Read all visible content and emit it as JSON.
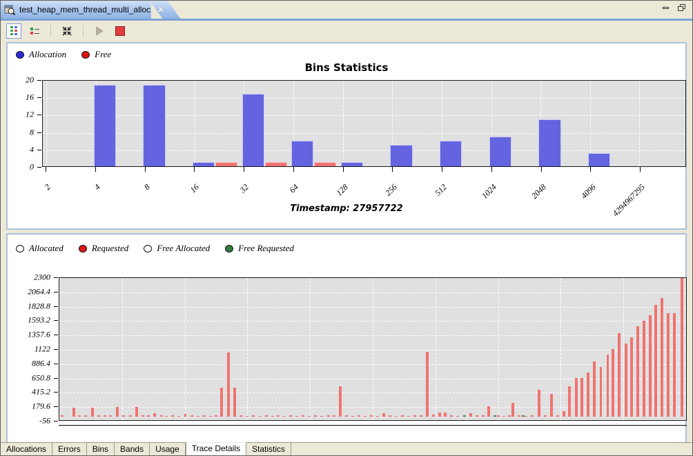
{
  "window": {
    "tab_title": "test_heap_mem_thread_multi_alloc",
    "close_glyph": "✕"
  },
  "toolbar": {
    "icons": [
      "grid-view",
      "legend-view",
      "fit-to-window",
      "play",
      "stop"
    ]
  },
  "legend_top": [
    {
      "label": "Allocation",
      "color": "#2a2ad8"
    },
    {
      "label": "Free",
      "color": "#e01414"
    }
  ],
  "legend_bottom": [
    {
      "label": "Allocated",
      "color": "#ffffff"
    },
    {
      "label": "Requested",
      "color": "#e01414"
    },
    {
      "label": "Free Allocated",
      "color": "#ffffff"
    },
    {
      "label": "Free Requested",
      "color": "#2e7d3c"
    }
  ],
  "bins": {
    "title": "Bins Statistics",
    "timestamp": "Timestamp: 27957722"
  },
  "bottom_tabs": {
    "items": [
      "Allocations",
      "Errors",
      "Bins",
      "Bands",
      "Usage",
      "Trace Details",
      "Statistics"
    ],
    "active": "Trace Details"
  },
  "chart_data": [
    {
      "type": "bar",
      "title": "Bins Statistics",
      "categories": [
        "2",
        "4",
        "8",
        "16",
        "32",
        "64",
        "128",
        "256",
        "512",
        "1024",
        "2048",
        "4096",
        "4294967295"
      ],
      "series": [
        {
          "name": "Allocation",
          "color": "#6463e0",
          "border": "#c9c9f5",
          "values": [
            0,
            19,
            19,
            1,
            17,
            6,
            1,
            5,
            6,
            7,
            11,
            3,
            0
          ]
        },
        {
          "name": "Free",
          "color": "#ef7370",
          "border": "#f7c3c0",
          "values": [
            0,
            0,
            0,
            1,
            1,
            1,
            0,
            0,
            0,
            0,
            0,
            0,
            0
          ]
        }
      ],
      "ylim": [
        0,
        20
      ],
      "yticks": [
        0,
        4,
        8,
        12,
        16,
        20
      ],
      "grid": true,
      "legend_position": "top-left",
      "annotation": "Timestamp: 27957722"
    },
    {
      "type": "bar",
      "title": "",
      "legend": [
        "Allocated",
        "Requested",
        "Free Allocated",
        "Free Requested"
      ],
      "ylim": [
        -56,
        2300
      ],
      "yticks": [
        2300,
        2064.4,
        1828.8,
        1593.2,
        1357.6,
        1122,
        886.4,
        650.8,
        415.2,
        179.6,
        -56
      ],
      "xdivisions": 10,
      "grid": true,
      "colors": {
        "requested": "#ef7370",
        "free_requested": "#3f8b4f"
      },
      "bars": [
        [
          0.4,
          25
        ],
        [
          2.3,
          150
        ],
        [
          3.2,
          20
        ],
        [
          4.2,
          25
        ],
        [
          5.3,
          150
        ],
        [
          6.3,
          20
        ],
        [
          7.3,
          25
        ],
        [
          8.1,
          20
        ],
        [
          9.2,
          160
        ],
        [
          10.2,
          25
        ],
        [
          11.3,
          20
        ],
        [
          12.3,
          165
        ],
        [
          13.3,
          25
        ],
        [
          14.2,
          20
        ],
        [
          15.2,
          60
        ],
        [
          16.3,
          25
        ],
        [
          17.1,
          15
        ],
        [
          18.1,
          20
        ],
        [
          19.1,
          15
        ],
        [
          20.1,
          50
        ],
        [
          21.1,
          20
        ],
        [
          22.1,
          15
        ],
        [
          23.1,
          20
        ],
        [
          24.1,
          15
        ],
        [
          25.0,
          20
        ],
        [
          25.9,
          480
        ],
        [
          27.0,
          1060
        ],
        [
          28.0,
          480
        ],
        [
          29.0,
          25
        ],
        [
          30.0,
          15
        ],
        [
          31.0,
          20
        ],
        [
          32.0,
          15
        ],
        [
          33.0,
          20
        ],
        [
          34.0,
          15
        ],
        [
          34.9,
          20
        ],
        [
          35.9,
          15
        ],
        [
          36.9,
          20
        ],
        [
          37.9,
          15
        ],
        [
          38.9,
          20
        ],
        [
          39.9,
          15
        ],
        [
          40.9,
          20
        ],
        [
          41.9,
          15
        ],
        [
          42.9,
          20
        ],
        [
          43.8,
          25
        ],
        [
          44.8,
          500
        ],
        [
          45.8,
          20
        ],
        [
          46.8,
          15
        ],
        [
          47.8,
          20
        ],
        [
          48.8,
          15
        ],
        [
          49.8,
          20
        ],
        [
          50.8,
          15
        ],
        [
          51.8,
          60
        ],
        [
          52.7,
          20
        ],
        [
          53.7,
          15
        ],
        [
          54.7,
          20
        ],
        [
          55.7,
          15
        ],
        [
          56.7,
          25
        ],
        [
          57.7,
          30
        ],
        [
          58.7,
          1080
        ],
        [
          59.7,
          35
        ],
        [
          60.7,
          70
        ],
        [
          61.6,
          70
        ],
        [
          62.6,
          25
        ],
        [
          63.6,
          15
        ],
        [
          64.6,
          25,
          1
        ],
        [
          65.6,
          55
        ],
        [
          66.6,
          20
        ],
        [
          67.6,
          20
        ],
        [
          68.5,
          170
        ],
        [
          69.5,
          30,
          1
        ],
        [
          70.0,
          25
        ],
        [
          70.9,
          15
        ],
        [
          71.8,
          20
        ],
        [
          72.4,
          230
        ],
        [
          73.4,
          20
        ],
        [
          74.0,
          30,
          1
        ],
        [
          74.5,
          15
        ],
        [
          75.4,
          20
        ],
        [
          76.5,
          450
        ],
        [
          77.5,
          20
        ],
        [
          78.5,
          380
        ],
        [
          79.5,
          20
        ],
        [
          80.5,
          90
        ],
        [
          81.4,
          500
        ],
        [
          82.5,
          640
        ],
        [
          83.4,
          640
        ],
        [
          84.4,
          730
        ],
        [
          85.3,
          920
        ],
        [
          86.4,
          830
        ],
        [
          87.5,
          1030
        ],
        [
          88.3,
          1120
        ],
        [
          89.3,
          1390
        ],
        [
          90.4,
          1210
        ],
        [
          91.3,
          1320
        ],
        [
          92.3,
          1500
        ],
        [
          93.3,
          1590
        ],
        [
          94.3,
          1680
        ],
        [
          95.2,
          1850
        ],
        [
          96.2,
          1970
        ],
        [
          97.1,
          1720
        ],
        [
          98.1,
          1720
        ],
        [
          99.3,
          2300
        ]
      ]
    }
  ]
}
